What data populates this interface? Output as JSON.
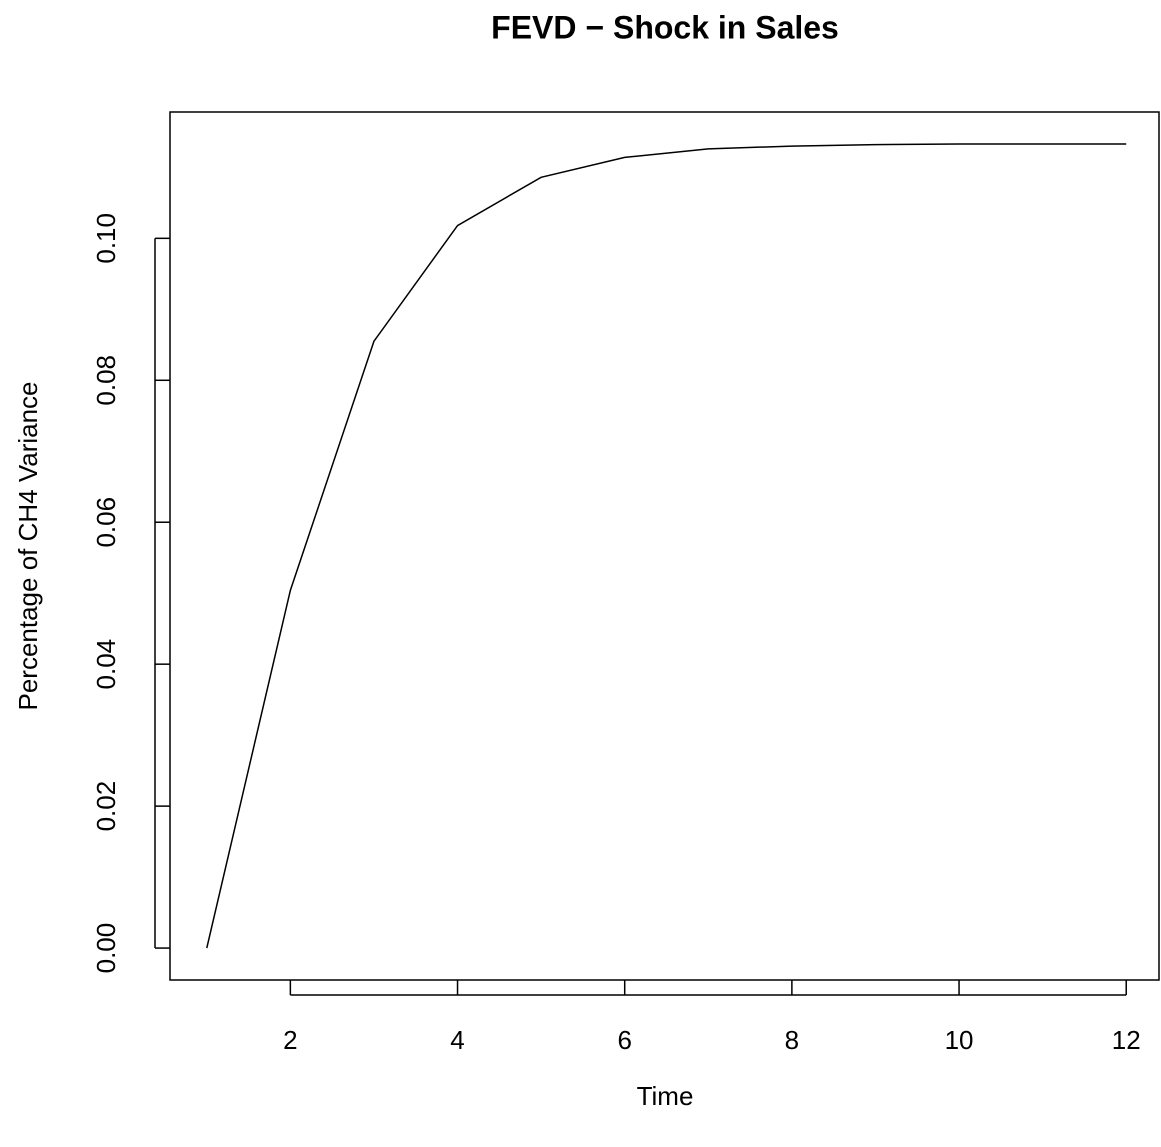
{
  "chart_data": {
    "type": "line",
    "title": "FEVD − Shock in Sales",
    "x_label": "Time",
    "y_label": "Percentage of CH4 Variance",
    "x": [
      1,
      2,
      3,
      4,
      5,
      6,
      7,
      8,
      9,
      10,
      11,
      12
    ],
    "series": [
      {
        "color": "#000000",
        "values": [
          0,
          0.0504,
          0.0855,
          0.1018,
          0.1086,
          0.1114,
          0.1126,
          0.113,
          0.1132,
          0.1133,
          0.1133,
          0.1133
        ]
      }
    ],
    "xlim": [
      0.56,
      12.44
    ],
    "ylim": [
      -0.0045,
      0.1178
    ],
    "xticks": [
      2,
      4,
      6,
      8,
      10,
      12
    ],
    "yticks": [
      {
        "value": 0,
        "label": "0.00"
      },
      0.02,
      0.04,
      0.06,
      0.08,
      {
        "value": 0.1,
        "label": "0.10"
      }
    ]
  }
}
